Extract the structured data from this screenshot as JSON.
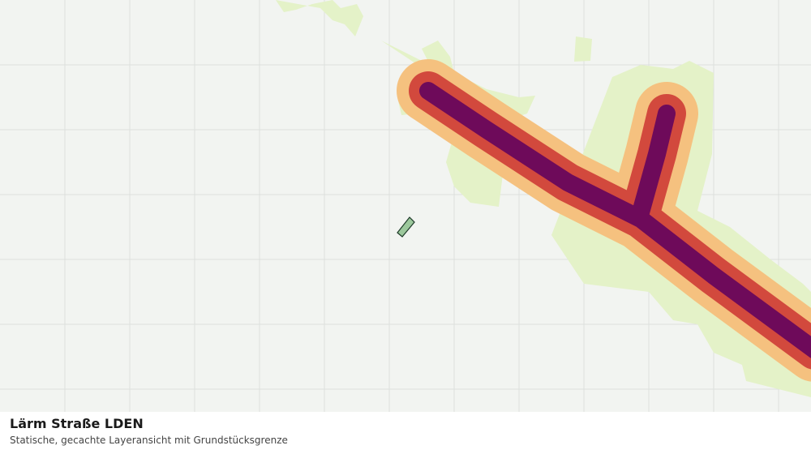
{
  "title": "Lärm Straße LDEN",
  "subtitle": "Statische, gecachte Layeransicht mit Grundstücksgrenze"
}
